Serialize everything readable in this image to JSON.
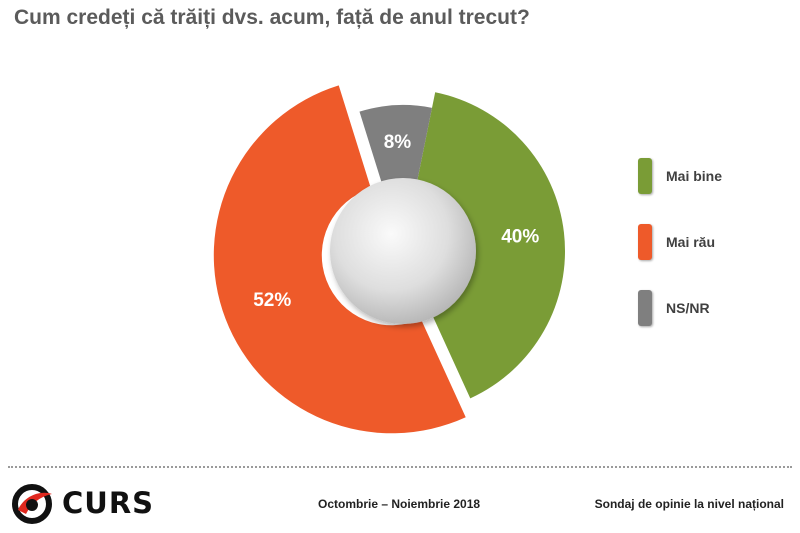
{
  "title": "Cum credeți că trăiți dvs. acum, față de anul trecut?",
  "chart_data": {
    "type": "pie",
    "variant": "donut",
    "series": [
      {
        "name": "Mai bine",
        "value": 40,
        "label": "40%",
        "color": "#7a9c36"
      },
      {
        "name": "Mai rău",
        "value": 52,
        "label": "52%",
        "color": "#ee5a2a"
      },
      {
        "name": "NS/NR",
        "value": 8,
        "label": "8%",
        "color": "#7f7f7f"
      }
    ],
    "legend_position": "right"
  },
  "footer": {
    "logo_text": "CURS",
    "date": "Octombrie – Noiembrie 2018",
    "subtitle": "Sondaj de opinie la nivel național"
  }
}
